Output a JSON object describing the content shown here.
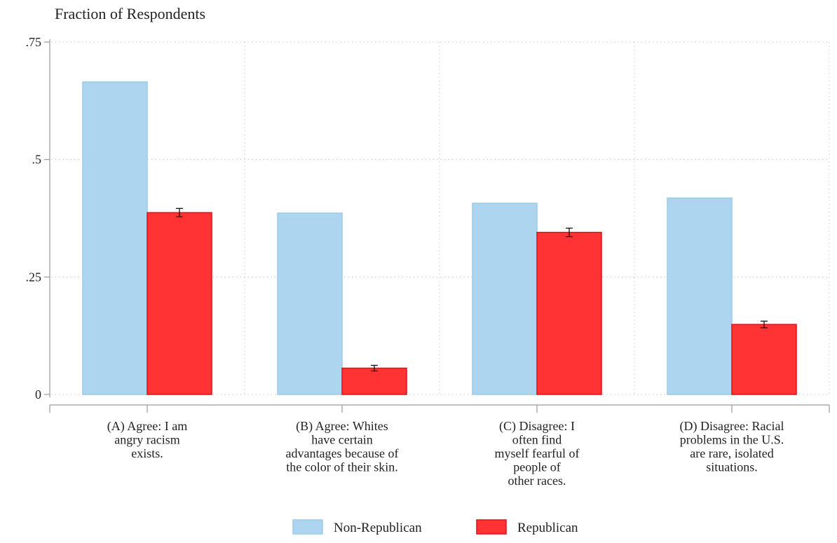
{
  "chart_data": {
    "type": "bar",
    "title": "",
    "ylabel": "Fraction of Respondents",
    "xlabel": "",
    "ylim": [
      0,
      0.75
    ],
    "yticks": [
      {
        "value": 0,
        "label": "0"
      },
      {
        "value": 0.25,
        "label": ".25"
      },
      {
        "value": 0.5,
        "label": ".5"
      },
      {
        "value": 0.75,
        "label": ".75"
      }
    ],
    "grid": true,
    "legend_position": "bottom",
    "categories": [
      [
        "(A) Agree: I am",
        "angry racism",
        "exists."
      ],
      [
        "(B) Agree: Whites",
        "have certain",
        "advantages because of",
        "the color of their skin."
      ],
      [
        "(C) Disagree: I",
        "often find",
        "myself fearful of",
        "people of",
        "other races."
      ],
      [
        "(D) Disagree: Racial",
        "problems in the U.S.",
        "are rare, isolated",
        "situations."
      ]
    ],
    "series": [
      {
        "name": "Non-Republican",
        "color": "#aed5ef",
        "edge": "#9ccbe9",
        "values": [
          0.665,
          0.386,
          0.407,
          0.418
        ]
      },
      {
        "name": "Republican",
        "color": "#ff3333",
        "edge": "#e0101a",
        "values": [
          0.387,
          0.056,
          0.345,
          0.149
        ],
        "error": [
          0.009,
          0.006,
          0.009,
          0.007
        ]
      }
    ]
  }
}
